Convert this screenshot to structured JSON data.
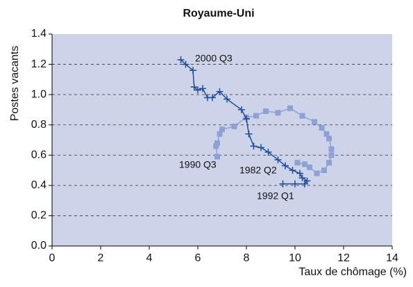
{
  "chart_data": {
    "type": "scatter-line",
    "title": "Royaume-Uni",
    "xlabel": "Taux de chômage (%)",
    "ylabel": "Postes vacants",
    "xlim": [
      0,
      14
    ],
    "xticks": [
      0,
      2,
      4,
      6,
      8,
      10,
      12,
      14
    ],
    "ylim": [
      0,
      1.4
    ],
    "yticks": [
      {
        "value": 0,
        "label": "0.0"
      },
      0.2,
      0.4,
      0.6,
      0.8,
      {
        "value": 1,
        "label": "1.0"
      },
      1.2,
      1.4
    ],
    "grid": true,
    "background": "#cdd3e8",
    "annotations": [
      "2000 Q3",
      "1990 Q3",
      "1982 Q2",
      "1992 Q1"
    ],
    "series": [
      {
        "color": "#8ea0d4",
        "marker": "square",
        "x": [
          10.1,
          10.4,
          10.6,
          10.9,
          11.2,
          11.4,
          11.5,
          11.5,
          11.4,
          11.3,
          11.1,
          10.8,
          10.3,
          9.8,
          9.3,
          8.8,
          8.4,
          8.0,
          7.5,
          7.0,
          6.9,
          6.8,
          6.75,
          6.8
        ],
        "values": [
          0.55,
          0.54,
          0.52,
          0.48,
          0.5,
          0.55,
          0.6,
          0.64,
          0.71,
          0.74,
          0.78,
          0.82,
          0.86,
          0.91,
          0.88,
          0.89,
          0.86,
          0.85,
          0.79,
          0.77,
          0.74,
          0.68,
          0.66,
          0.59
        ]
      },
      {
        "color": "#1f4e9a",
        "marker": "cross",
        "x": [
          9.5,
          10.0,
          10.4,
          10.5,
          10.3,
          10.2,
          9.9,
          9.6,
          9.3,
          8.9,
          8.6,
          8.3,
          8.1,
          8.0,
          7.8,
          7.2,
          6.9,
          6.6,
          6.4,
          6.2,
          6.0,
          5.85,
          5.8,
          5.5,
          5.3
        ],
        "values": [
          0.41,
          0.41,
          0.41,
          0.43,
          0.45,
          0.48,
          0.5,
          0.53,
          0.57,
          0.62,
          0.65,
          0.66,
          0.74,
          0.84,
          0.9,
          0.97,
          1.02,
          0.98,
          0.98,
          1.04,
          1.03,
          1.05,
          1.16,
          1.2,
          1.23
        ]
      }
    ]
  }
}
